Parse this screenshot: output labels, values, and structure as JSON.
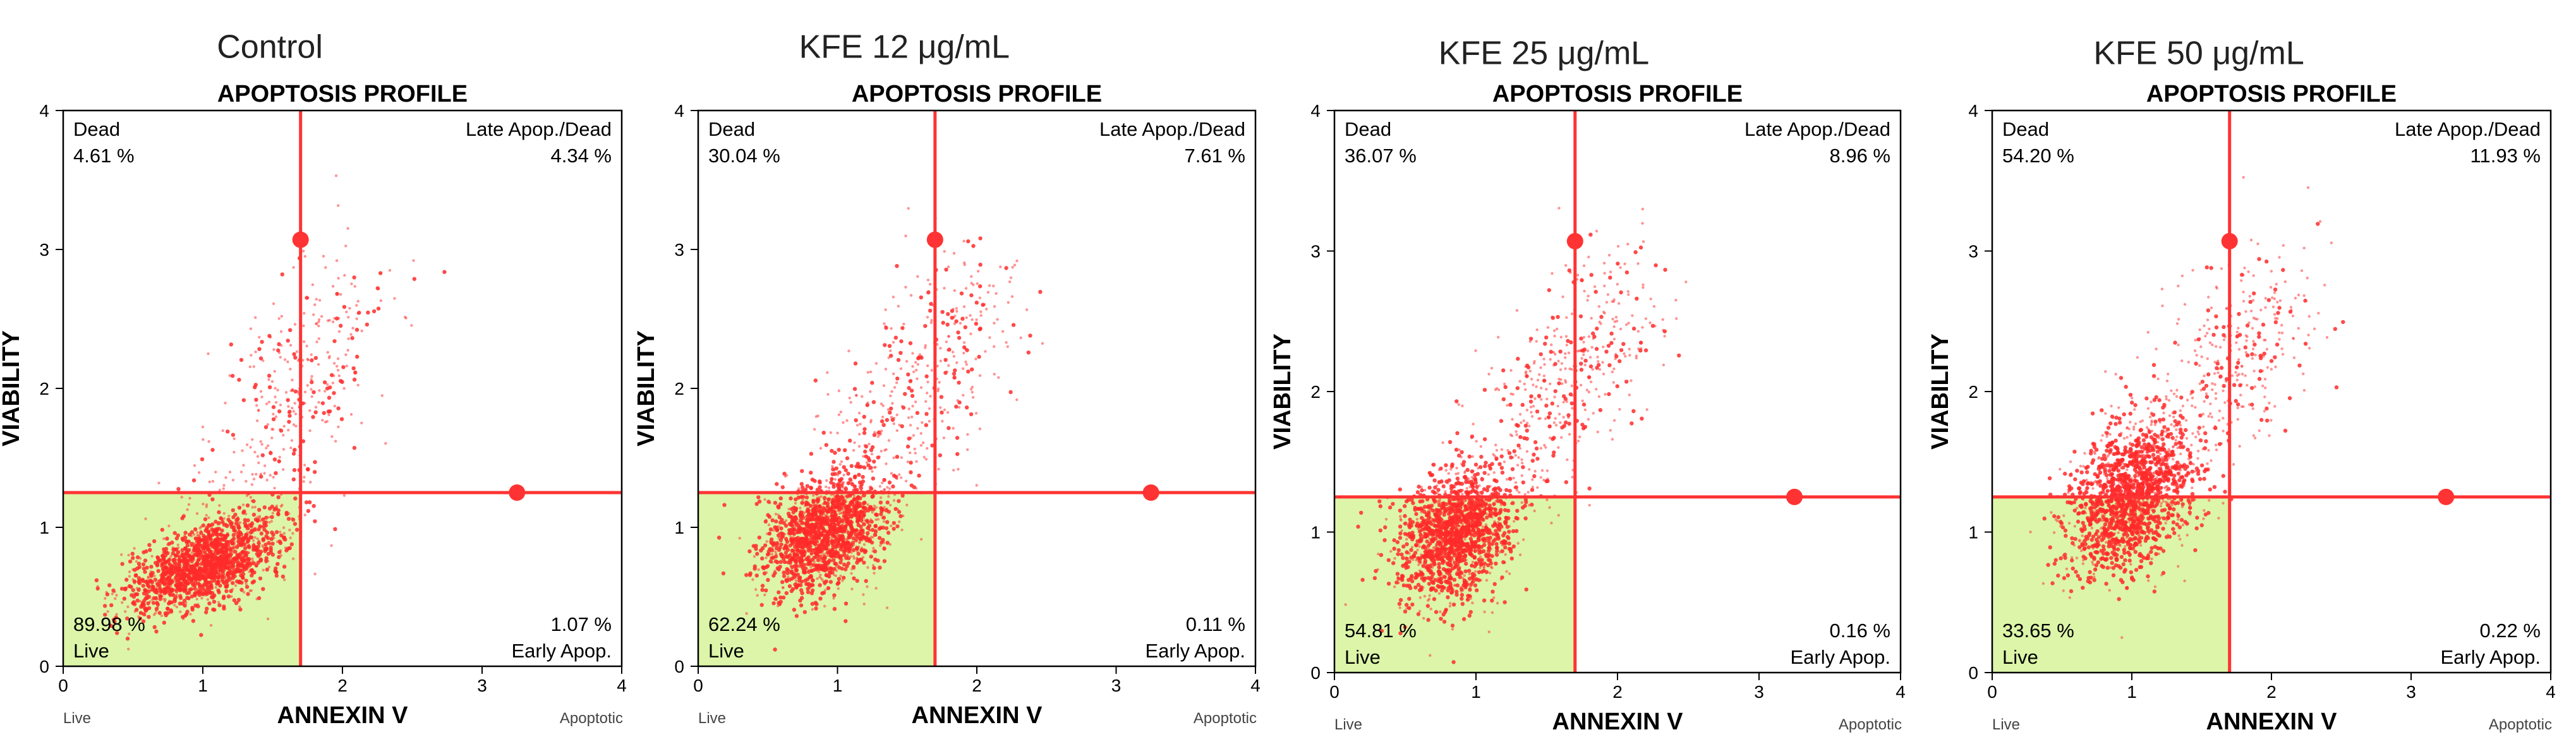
{
  "figure": {
    "colors": {
      "live_region": "#dcf5a8",
      "gate_line": "#ff3333",
      "dot": "#ff2a2a",
      "axis": "#000000"
    }
  },
  "chart_data": [
    {
      "type": "scatter",
      "panel_title": "Control",
      "title": "APOPTOSIS PROFILE",
      "xlabel": "ANNEXIN V",
      "ylabel": "VIABILITY",
      "xlim": [
        0,
        4
      ],
      "ylim": [
        0,
        4
      ],
      "x_ticks": [
        "0",
        "1",
        "2",
        "3",
        "4"
      ],
      "y_ticks": [
        "0",
        "1",
        "2",
        "3",
        "4"
      ],
      "x_end_labels": [
        "Live",
        "Apoptotic"
      ],
      "gates": {
        "x": 1.7,
        "y": 1.25,
        "handles": [
          [
            1.7,
            3.07
          ],
          [
            3.25,
            1.25
          ]
        ]
      },
      "quadrants": {
        "upper_left": {
          "label": "Dead",
          "percent": "4.61 %"
        },
        "upper_right": {
          "label": "Late Apop./Dead",
          "percent": "4.34 %"
        },
        "lower_left": {
          "label": "Live",
          "percent": "89.98 %"
        },
        "lower_right": {
          "label": "Early Apop.",
          "percent": "1.07 %"
        }
      },
      "population": {
        "count": 2000,
        "live_center": [
          1.0,
          0.73
        ],
        "live_spread": [
          0.27,
          0.14
        ],
        "tail_end": [
          2.05,
          2.6
        ]
      }
    },
    {
      "type": "scatter",
      "panel_title": "KFE 12 μg/mL",
      "title": "APOPTOSIS PROFILE",
      "xlabel": "ANNEXIN V",
      "ylabel": "VIABILITY",
      "xlim": [
        0,
        4
      ],
      "ylim": [
        0,
        4
      ],
      "x_ticks": [
        "0",
        "1",
        "2",
        "3",
        "4"
      ],
      "y_ticks": [
        "0",
        "1",
        "2",
        "3",
        "4"
      ],
      "x_end_labels": [
        "Live",
        "Apoptotic"
      ],
      "gates": {
        "x": 1.7,
        "y": 1.25,
        "handles": [
          [
            1.7,
            3.07
          ],
          [
            3.25,
            1.25
          ]
        ]
      },
      "quadrants": {
        "upper_left": {
          "label": "Dead",
          "percent": "30.04 %"
        },
        "upper_right": {
          "label": "Late Apop./Dead",
          "percent": "7.61 %"
        },
        "lower_left": {
          "label": "Live",
          "percent": "62.24 %"
        },
        "lower_right": {
          "label": "Early Apop.",
          "percent": "0.11 %"
        }
      },
      "population": {
        "count": 2000,
        "live_center": [
          0.9,
          0.95
        ],
        "live_spread": [
          0.22,
          0.2
        ],
        "tail_end": [
          2.05,
          2.7
        ]
      }
    },
    {
      "type": "scatter",
      "panel_title": "KFE 25 μg/mL",
      "title": "APOPTOSIS PROFILE",
      "xlabel": "ANNEXIN V",
      "ylabel": "VIABILITY",
      "xlim": [
        0,
        4
      ],
      "ylim": [
        0,
        4
      ],
      "x_ticks": [
        "0",
        "1",
        "2",
        "3",
        "4"
      ],
      "y_ticks": [
        "0",
        "1",
        "2",
        "3",
        "4"
      ],
      "x_end_labels": [
        "Live",
        "Apoptotic"
      ],
      "gates": {
        "x": 1.7,
        "y": 1.25,
        "handles": [
          [
            1.7,
            3.07
          ],
          [
            3.25,
            1.25
          ]
        ]
      },
      "quadrants": {
        "upper_left": {
          "label": "Dead",
          "percent": "36.07 %"
        },
        "upper_right": {
          "label": "Late Apop./Dead",
          "percent": "8.96 %"
        },
        "lower_left": {
          "label": "Live",
          "percent": "54.81 %"
        },
        "lower_right": {
          "label": "Early Apop.",
          "percent": "0.16 %"
        }
      },
      "population": {
        "count": 2000,
        "live_center": [
          0.85,
          0.98
        ],
        "live_spread": [
          0.2,
          0.22
        ],
        "tail_end": [
          2.1,
          2.75
        ]
      }
    },
    {
      "type": "scatter",
      "panel_title": "KFE 50 μg/mL",
      "title": "APOPTOSIS PROFILE",
      "xlabel": "ANNEXIN V",
      "ylabel": "VIABILITY",
      "xlim": [
        0,
        4
      ],
      "ylim": [
        0,
        4
      ],
      "x_ticks": [
        "0",
        "1",
        "2",
        "3",
        "4"
      ],
      "y_ticks": [
        "0",
        "1",
        "2",
        "3",
        "4"
      ],
      "x_end_labels": [
        "Live",
        "Apoptotic"
      ],
      "gates": {
        "x": 1.7,
        "y": 1.25,
        "handles": [
          [
            1.7,
            3.07
          ],
          [
            3.25,
            1.25
          ]
        ]
      },
      "quadrants": {
        "upper_left": {
          "label": "Dead",
          "percent": "54.20 %"
        },
        "upper_right": {
          "label": "Late Apop./Dead",
          "percent": "11.93 %"
        },
        "lower_left": {
          "label": "Live",
          "percent": "33.65 %"
        },
        "lower_right": {
          "label": "Early Apop.",
          "percent": "0.22 %"
        }
      },
      "population": {
        "count": 2000,
        "live_center": [
          1.0,
          1.25
        ],
        "live_spread": [
          0.22,
          0.25
        ],
        "tail_end": [
          2.1,
          2.8
        ]
      }
    }
  ]
}
